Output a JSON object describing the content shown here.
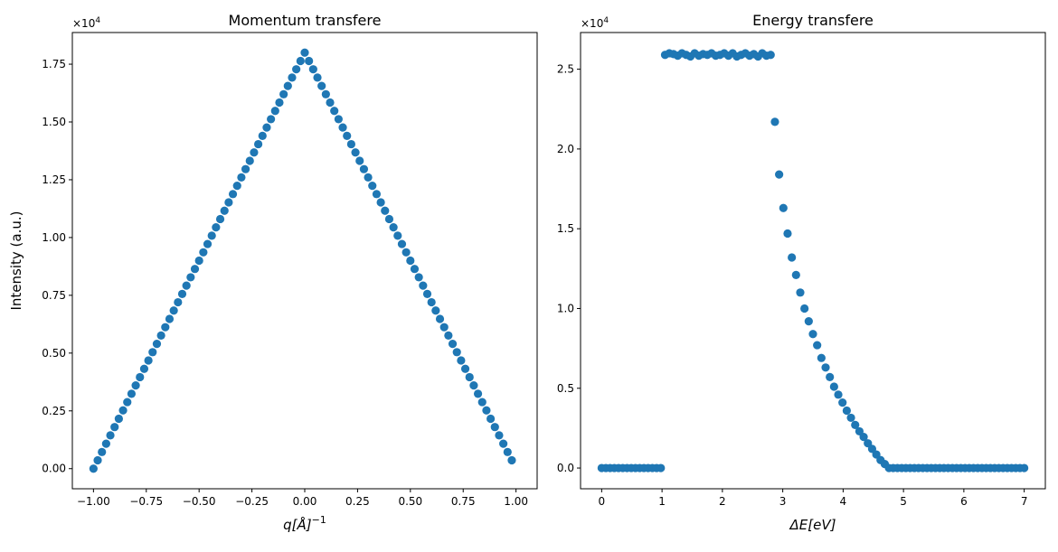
{
  "chart_data": [
    {
      "type": "scatter",
      "title": "Momentum transfere",
      "xlabel": "q[Å]",
      "xlabel_sup": "−1",
      "ylabel": "Intensity (a.u.)",
      "y_multiplier": "×10",
      "y_multiplier_exp": "4",
      "xlim": [
        -1.1,
        1.1
      ],
      "ylim": [
        -870,
        18870
      ],
      "xticks": [
        -1.0,
        -0.75,
        -0.5,
        -0.25,
        0.0,
        0.25,
        0.5,
        0.75,
        1.0
      ],
      "xtick_labels": [
        "−1.00",
        "−0.75",
        "−0.50",
        "−0.25",
        "0.00",
        "0.25",
        "0.50",
        "0.75",
        "1.00"
      ],
      "yticks": [
        0,
        2500,
        5000,
        7500,
        10000,
        12500,
        15000,
        17500
      ],
      "ytick_labels": [
        "0.00",
        "0.25",
        "0.50",
        "0.75",
        "1.00",
        "1.25",
        "1.50",
        "1.75"
      ],
      "color": "#1f77b4",
      "x": [
        -1.0,
        -0.98,
        -0.96,
        -0.94,
        -0.92,
        -0.9,
        -0.88,
        -0.86,
        -0.84,
        -0.82,
        -0.8,
        -0.78,
        -0.76,
        -0.74,
        -0.72,
        -0.7,
        -0.68,
        -0.66,
        -0.64,
        -0.62,
        -0.6,
        -0.58,
        -0.56,
        -0.54,
        -0.52,
        -0.5,
        -0.48,
        -0.46,
        -0.44,
        -0.42,
        -0.4,
        -0.38,
        -0.36,
        -0.34,
        -0.32,
        -0.3,
        -0.28,
        -0.26,
        -0.24,
        -0.22,
        -0.2,
        -0.18,
        -0.16,
        -0.14,
        -0.12,
        -0.1,
        -0.08,
        -0.06,
        -0.04,
        -0.02,
        0.0,
        0.02,
        0.04,
        0.06,
        0.08,
        0.1,
        0.12,
        0.14,
        0.16,
        0.18,
        0.2,
        0.22,
        0.24,
        0.26,
        0.28,
        0.3,
        0.32,
        0.34,
        0.36,
        0.38,
        0.4,
        0.42,
        0.44,
        0.46,
        0.48,
        0.5,
        0.52,
        0.54,
        0.56,
        0.58,
        0.6,
        0.62,
        0.64,
        0.66,
        0.68,
        0.7,
        0.72,
        0.74,
        0.76,
        0.78,
        0.8,
        0.82,
        0.84,
        0.86,
        0.88,
        0.9,
        0.92,
        0.94,
        0.96,
        0.98
      ],
      "y": [
        0,
        360,
        720,
        1080,
        1440,
        1800,
        2160,
        2520,
        2880,
        3240,
        3600,
        3960,
        4320,
        4680,
        5040,
        5400,
        5760,
        6120,
        6480,
        6840,
        7200,
        7560,
        7920,
        8280,
        8640,
        9000,
        9360,
        9720,
        10080,
        10440,
        10800,
        11160,
        11520,
        11880,
        12240,
        12600,
        12960,
        13320,
        13680,
        14040,
        14400,
        14760,
        15120,
        15480,
        15840,
        16200,
        16560,
        16920,
        17280,
        17640,
        18000,
        17640,
        17280,
        16920,
        16560,
        16200,
        15840,
        15480,
        15120,
        14760,
        14400,
        14040,
        13680,
        13320,
        12960,
        12600,
        12240,
        11880,
        11520,
        11160,
        10800,
        10440,
        10080,
        9720,
        9360,
        9000,
        8640,
        8280,
        7920,
        7560,
        7200,
        6840,
        6480,
        6120,
        5760,
        5400,
        5040,
        4680,
        4320,
        3960,
        3600,
        3240,
        2880,
        2520,
        2160,
        1800,
        1440,
        1080,
        720,
        360
      ]
    },
    {
      "type": "scatter",
      "title": "Energy transfere",
      "xlabel": "ΔE[eV]",
      "ylabel": "",
      "y_multiplier": "×10",
      "y_multiplier_exp": "4",
      "xlim": [
        -0.35,
        7.35
      ],
      "ylim": [
        -1300,
        27300
      ],
      "xticks": [
        0,
        1,
        2,
        3,
        4,
        5,
        6,
        7
      ],
      "xtick_labels": [
        "0",
        "1",
        "2",
        "3",
        "4",
        "5",
        "6",
        "7"
      ],
      "yticks": [
        0,
        5000,
        10000,
        15000,
        20000,
        25000
      ],
      "ytick_labels": [
        "0.0",
        "0.5",
        "1.0",
        "1.5",
        "2.0",
        "2.5"
      ],
      "color": "#1f77b4",
      "x": [
        0.0,
        0.07,
        0.14,
        0.21,
        0.28,
        0.35,
        0.42,
        0.49,
        0.56,
        0.63,
        0.7,
        0.77,
        0.84,
        0.91,
        0.98,
        1.05,
        1.12,
        1.19,
        1.26,
        1.33,
        1.4,
        1.47,
        1.54,
        1.61,
        1.68,
        1.75,
        1.82,
        1.89,
        1.96,
        2.03,
        2.1,
        2.17,
        2.24,
        2.31,
        2.38,
        2.45,
        2.52,
        2.59,
        2.66,
        2.73,
        2.8,
        2.87,
        2.94,
        3.01,
        3.08,
        3.15,
        3.22,
        3.29,
        3.36,
        3.43,
        3.5,
        3.57,
        3.64,
        3.71,
        3.78,
        3.85,
        3.92,
        3.99,
        4.06,
        4.13,
        4.2,
        4.27,
        4.34,
        4.41,
        4.48,
        4.55,
        4.62,
        4.69,
        4.76,
        4.83,
        4.9,
        4.97,
        5.04,
        5.11,
        5.18,
        5.25,
        5.32,
        5.39,
        5.46,
        5.53,
        5.6,
        5.67,
        5.74,
        5.81,
        5.88,
        5.95,
        6.02,
        6.09,
        6.16,
        6.23,
        6.3,
        6.37,
        6.44,
        6.51,
        6.58,
        6.65,
        6.72,
        6.79,
        6.86,
        6.93,
        7.0
      ],
      "y": [
        0,
        0,
        0,
        0,
        0,
        0,
        0,
        0,
        0,
        0,
        0,
        0,
        0,
        0,
        0,
        25900,
        26000,
        25950,
        25850,
        26000,
        25900,
        25800,
        26000,
        25850,
        25950,
        25900,
        26000,
        25850,
        25900,
        26000,
        25850,
        26000,
        25800,
        25900,
        26000,
        25850,
        25950,
        25800,
        26000,
        25850,
        25900,
        21700,
        18400,
        16300,
        14700,
        13200,
        12100,
        11000,
        10000,
        9200,
        8400,
        7700,
        6900,
        6300,
        5700,
        5100,
        4600,
        4100,
        3600,
        3150,
        2700,
        2300,
        1950,
        1550,
        1200,
        850,
        500,
        250,
        0,
        0,
        0,
        0,
        0,
        0,
        0,
        0,
        0,
        0,
        0,
        0,
        0,
        0,
        0,
        0,
        0,
        0,
        0,
        0,
        0,
        0,
        0,
        0,
        0,
        0,
        0,
        0,
        0,
        0,
        0,
        0,
        0
      ]
    }
  ]
}
